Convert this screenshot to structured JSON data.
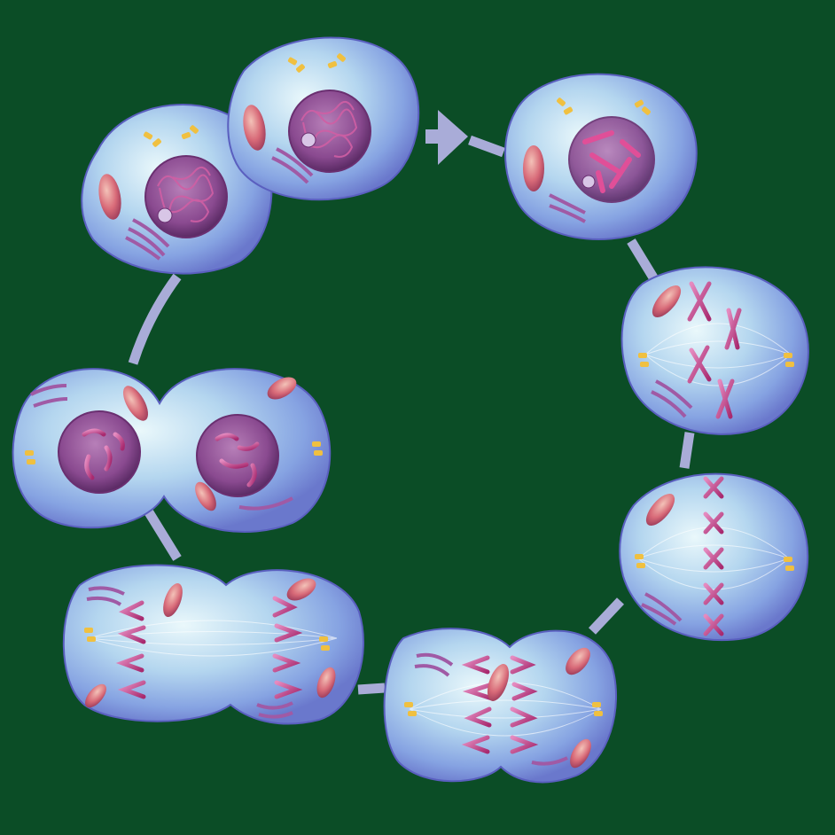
{
  "colors": {
    "background": "#0b4d26",
    "cycle_path": "#a9acd8",
    "cell_body": "#7f9fe0",
    "cell_light": "#dff2f8",
    "cell_edge": "#5a5fbf",
    "chromosome": "#c83f8a",
    "nucleus": "#7a3a7e",
    "mitochondrion": "#d86a78",
    "centrosome": "#f0c040",
    "er": "#a05aa5"
  },
  "stages": [
    {
      "id": "interphase-pair",
      "kind": "interphase"
    },
    {
      "id": "prophase",
      "kind": "prophase"
    },
    {
      "id": "prometaphase",
      "kind": "prometaphase"
    },
    {
      "id": "metaphase",
      "kind": "metaphase"
    },
    {
      "id": "anaphase",
      "kind": "anaphase"
    },
    {
      "id": "telophase",
      "kind": "telophase"
    },
    {
      "id": "cytokinesis",
      "kind": "cytokinesis"
    }
  ]
}
